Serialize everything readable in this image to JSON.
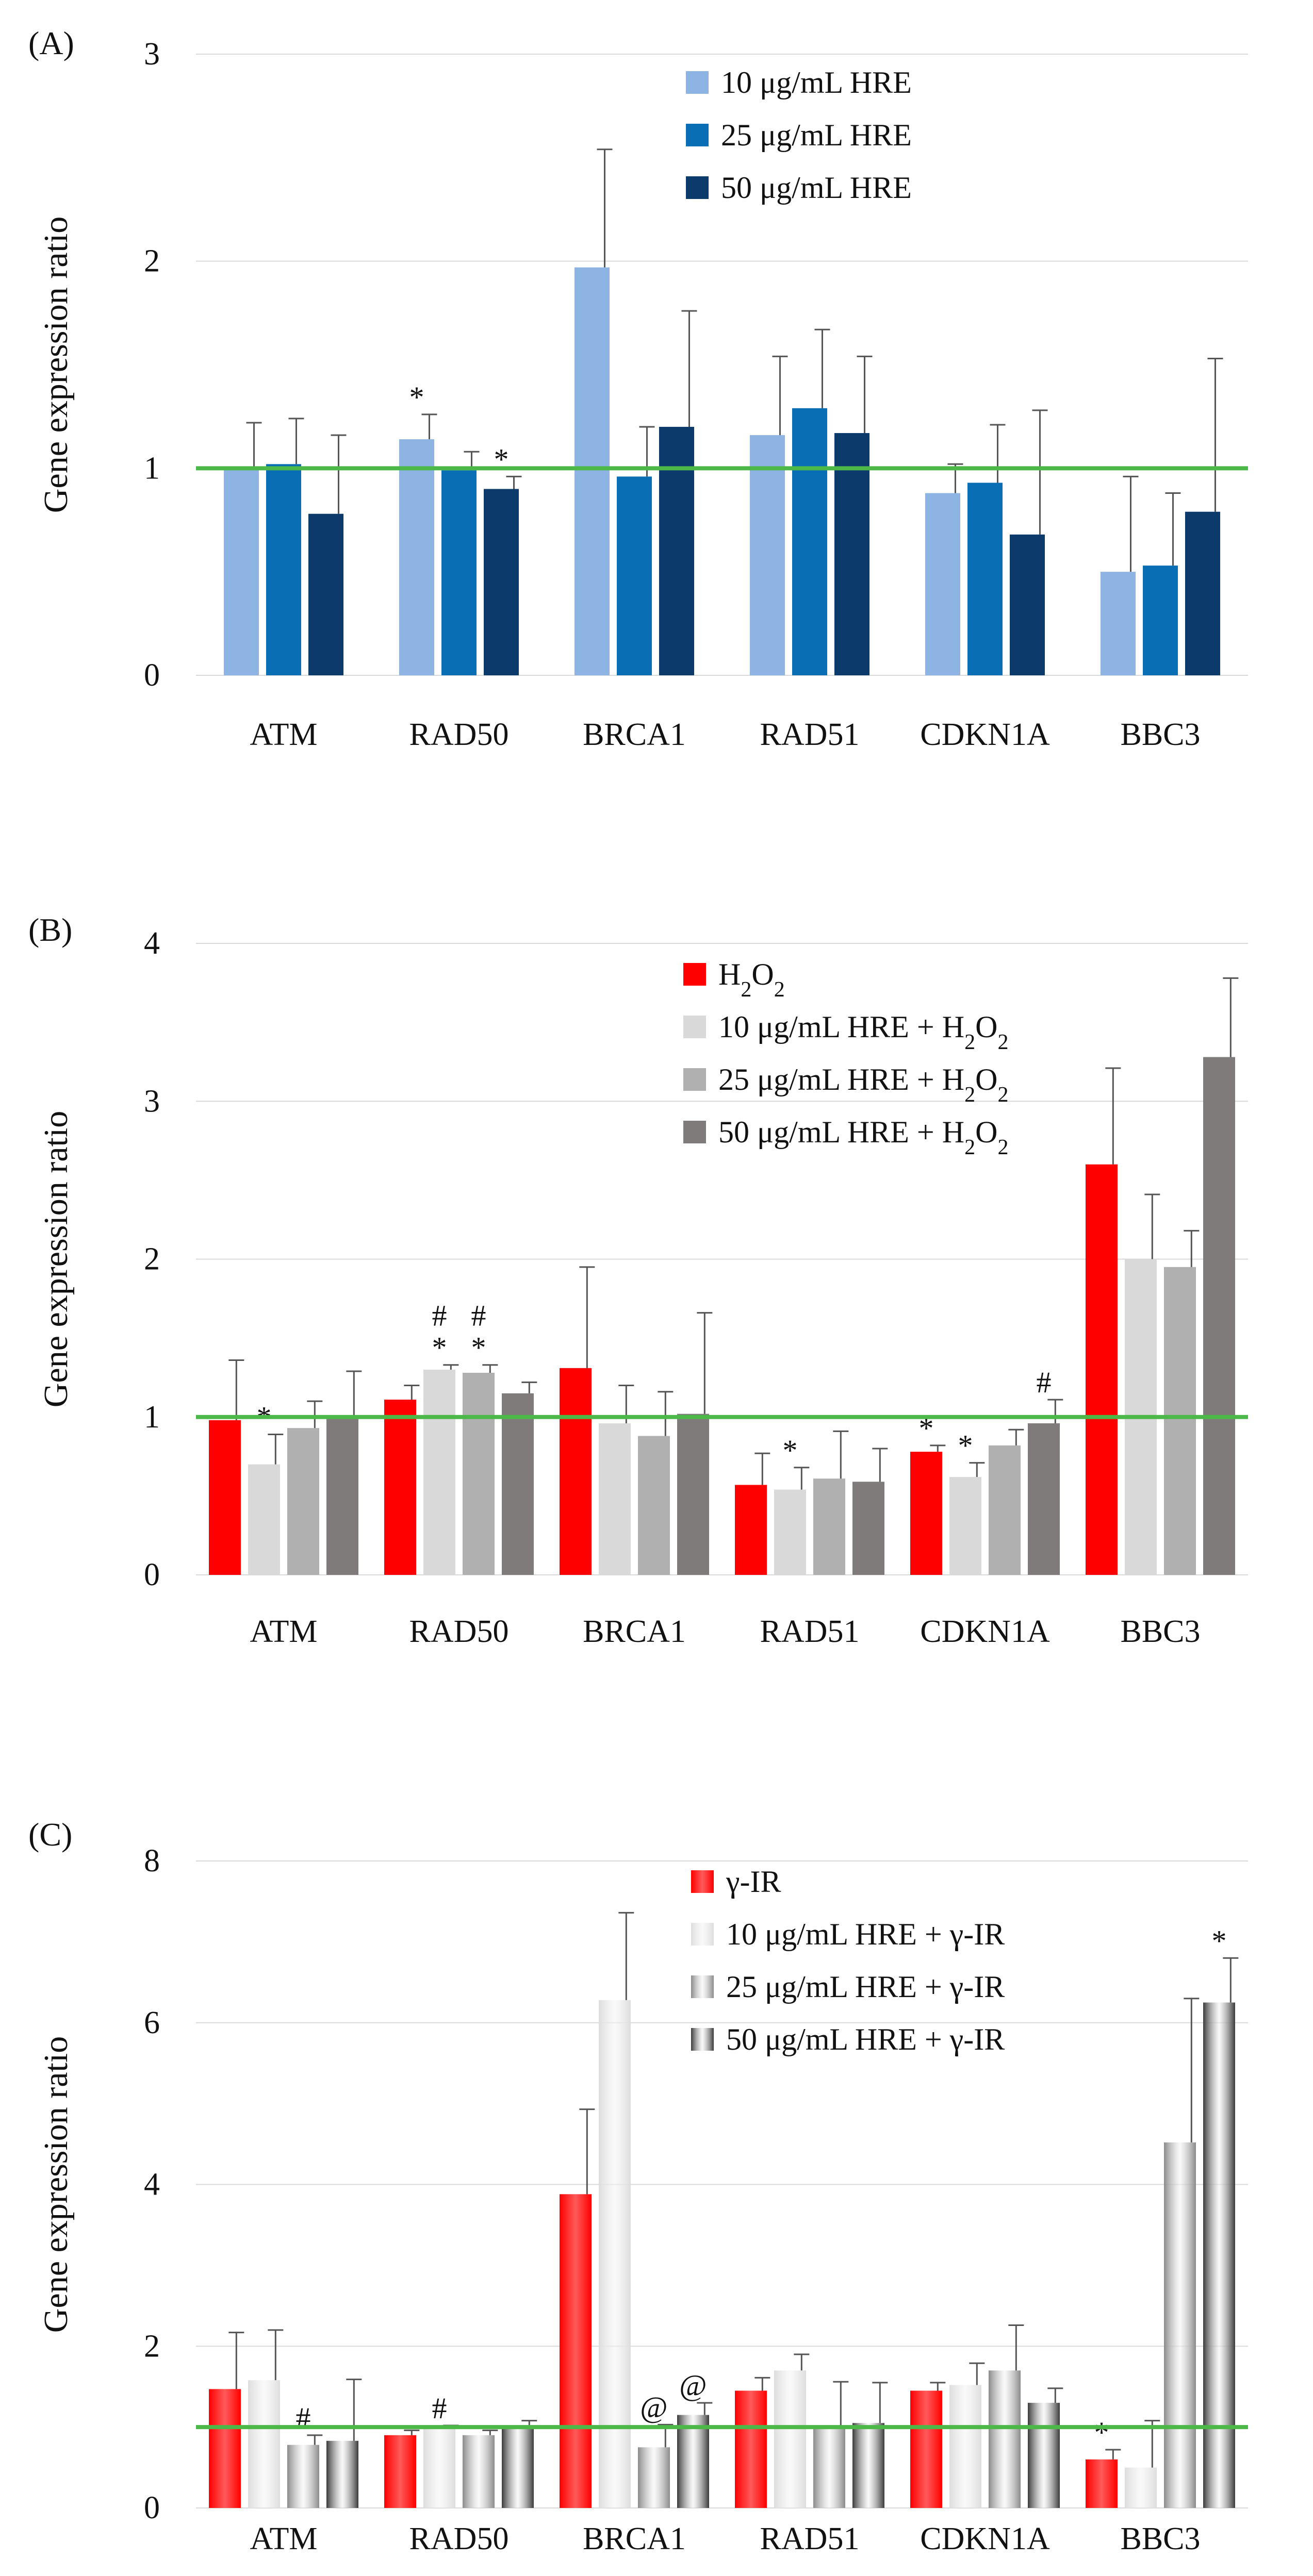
{
  "figure": {
    "ylabel": "Gene expression ratio",
    "reference_line_color": "#4cb848"
  },
  "chart_data": [
    {
      "type": "bar",
      "panel_label": "(A)",
      "title": "",
      "xlabel": "",
      "ylabel": "Gene expression ratio",
      "categories": [
        "ATM",
        "RAD50",
        "BRCA1",
        "RAD51",
        "CDKN1A",
        "BBC3"
      ],
      "ylim": [
        0,
        3
      ],
      "yticks": [
        "0",
        "1",
        "2",
        "3"
      ],
      "grid": true,
      "reference_line": 1,
      "legend_position": "top-center",
      "series": [
        {
          "name": "10 μg/mL HRE",
          "color": "#8db4e2",
          "pattern": "solid",
          "values": [
            1.0,
            1.14,
            1.97,
            1.16,
            0.88,
            0.5
          ],
          "errors": [
            0.22,
            0.12,
            0.57,
            0.38,
            0.14,
            0.46
          ],
          "marks": [
            "",
            "*",
            "",
            "",
            "",
            ""
          ]
        },
        {
          "name": "25 μg/mL HRE",
          "color": "#0a6eb4",
          "pattern": "solid",
          "values": [
            1.02,
            0.99,
            0.96,
            1.29,
            0.93,
            0.53
          ],
          "errors": [
            0.22,
            0.09,
            0.24,
            0.38,
            0.28,
            0.35
          ],
          "marks": [
            "",
            "",
            "",
            "",
            "",
            ""
          ]
        },
        {
          "name": "50 μg/mL HRE",
          "color": "#0b3a6b",
          "pattern": "solid",
          "values": [
            0.78,
            0.9,
            1.2,
            1.17,
            0.68,
            0.79
          ],
          "errors": [
            0.38,
            0.06,
            0.56,
            0.37,
            0.6,
            0.74
          ],
          "marks": [
            "",
            "*",
            "",
            "",
            "",
            ""
          ]
        }
      ]
    },
    {
      "type": "bar",
      "panel_label": "(B)",
      "title": "",
      "xlabel": "",
      "ylabel": "Gene expression ratio",
      "categories": [
        "ATM",
        "RAD50",
        "BRCA1",
        "RAD51",
        "CDKN1A",
        "BBC3"
      ],
      "ylim": [
        0,
        4
      ],
      "yticks": [
        "0",
        "1",
        "2",
        "3",
        "4"
      ],
      "grid": true,
      "reference_line": 1,
      "legend_position": "top-center",
      "series": [
        {
          "name": "H₂O₂",
          "color": "#ff0000",
          "pattern": "solid",
          "values": [
            0.98,
            1.11,
            1.31,
            0.57,
            0.78,
            2.6
          ],
          "errors": [
            0.38,
            0.09,
            0.64,
            0.2,
            0.04,
            0.61
          ],
          "marks": [
            "",
            "",
            "",
            "",
            "*",
            ""
          ]
        },
        {
          "name": "10 μg/mL HRE + H₂O₂",
          "color": "#d9d9d9",
          "pattern": "solid",
          "values": [
            0.7,
            1.3,
            0.96,
            0.54,
            0.62,
            2.0
          ],
          "errors": [
            0.19,
            0.03,
            0.24,
            0.14,
            0.09,
            0.41
          ],
          "marks": [
            "*",
            "#\n*",
            "",
            "*",
            "*",
            ""
          ]
        },
        {
          "name": "25 μg/mL HRE + H₂O₂",
          "color": "#b0b0b0",
          "pattern": "solid",
          "values": [
            0.93,
            1.28,
            0.88,
            0.61,
            0.82,
            1.95
          ],
          "errors": [
            0.17,
            0.05,
            0.28,
            0.3,
            0.1,
            0.23
          ],
          "marks": [
            "",
            "#\n*",
            "",
            "",
            "",
            ""
          ]
        },
        {
          "name": "50 μg/mL HRE + H₂O₂",
          "color": "#7f7b7b",
          "pattern": "solid",
          "values": [
            1.0,
            1.15,
            1.02,
            0.59,
            0.96,
            3.28
          ],
          "errors": [
            0.29,
            0.07,
            0.64,
            0.21,
            0.15,
            0.5
          ],
          "marks": [
            "",
            "",
            "",
            "",
            "#",
            ""
          ]
        }
      ]
    },
    {
      "type": "bar",
      "panel_label": "(C)",
      "title": "",
      "xlabel": "",
      "ylabel": "Gene expression ratio",
      "categories": [
        "ATM",
        "RAD50",
        "BRCA1",
        "RAD51",
        "CDKN1A",
        "BBC3"
      ],
      "ylim": [
        0,
        8
      ],
      "yticks": [
        "0",
        "2",
        "4",
        "6",
        "8"
      ],
      "grid": true,
      "reference_line": 1,
      "legend_position": "top-center",
      "series": [
        {
          "name": "γ-IR",
          "color": "#ff0000",
          "pattern": "gradient",
          "values": [
            1.47,
            0.9,
            3.88,
            1.45,
            1.45,
            0.6
          ],
          "errors": [
            0.7,
            0.06,
            1.05,
            0.16,
            0.1,
            0.12
          ],
          "marks": [
            "",
            "",
            "",
            "",
            "",
            "*"
          ]
        },
        {
          "name": "10 μg/mL HRE + γ-IR",
          "color": "#dddddd",
          "pattern": "gradient",
          "values": [
            1.58,
            1.0,
            6.28,
            1.7,
            1.52,
            0.5
          ],
          "errors": [
            0.62,
            0.02,
            1.08,
            0.2,
            0.27,
            0.58
          ],
          "marks": [
            "",
            "#",
            "",
            "",
            "",
            ""
          ]
        },
        {
          "name": "25 μg/mL HRE + γ-IR",
          "color": "#8a8a8a",
          "pattern": "gradient",
          "values": [
            0.78,
            0.9,
            0.75,
            1.0,
            1.7,
            4.52
          ],
          "errors": [
            0.12,
            0.06,
            0.28,
            0.56,
            0.56,
            1.78
          ],
          "marks": [
            "#",
            "",
            "@",
            "",
            "",
            ""
          ]
        },
        {
          "name": "50 μg/mL HRE + γ-IR",
          "color": "#3a3a3a",
          "pattern": "gradient",
          "values": [
            0.83,
            1.0,
            1.15,
            1.05,
            1.3,
            6.25
          ],
          "errors": [
            0.76,
            0.08,
            0.15,
            0.5,
            0.18,
            0.55
          ],
          "marks": [
            "",
            "",
            "@",
            "",
            "",
            "*"
          ]
        }
      ]
    }
  ]
}
